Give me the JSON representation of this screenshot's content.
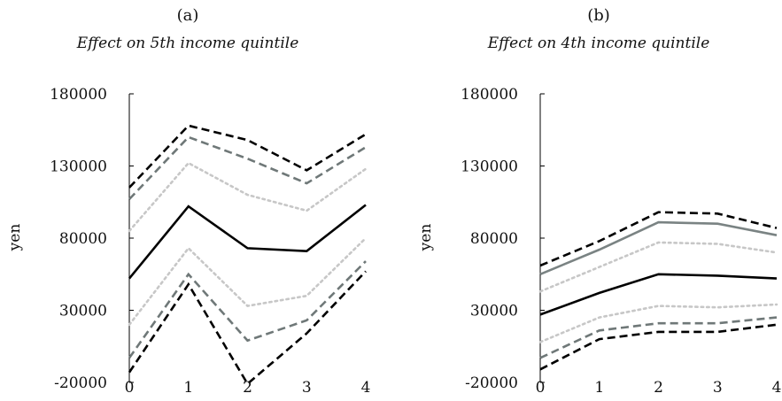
{
  "chart_data": [
    {
      "type": "line",
      "panel_label": "(a)",
      "title": "Effect on 5th income quintile",
      "xlabel": "",
      "ylabel": "yen",
      "x": [
        0,
        1,
        2,
        3,
        4
      ],
      "xticks": [
        "0",
        "1",
        "2",
        "3",
        "4"
      ],
      "yticks": [
        "180000",
        "130000",
        "80000",
        "30000",
        "-20000"
      ],
      "ylim": [
        -20000,
        180000
      ],
      "grid": false,
      "series": [
        {
          "style": "solid",
          "color": "#000000",
          "values": [
            52000,
            102000,
            73000,
            71000,
            103000
          ]
        },
        {
          "style": "dotted",
          "color": "#c7c7c7",
          "values": [
            85000,
            132000,
            110000,
            99000,
            128000
          ]
        },
        {
          "style": "dotted",
          "color": "#c7c7c7",
          "values": [
            20000,
            73000,
            33000,
            40000,
            80000
          ]
        },
        {
          "style": "dashed",
          "color": "#6f7878",
          "values": [
            107000,
            150000,
            135000,
            118000,
            143000
          ]
        },
        {
          "style": "dashed",
          "color": "#6f7878",
          "values": [
            -3000,
            55000,
            9000,
            23000,
            64000
          ]
        },
        {
          "style": "dashed",
          "color": "#000000",
          "values": [
            115000,
            158000,
            148000,
            127000,
            152000
          ]
        },
        {
          "style": "dashed",
          "color": "#000000",
          "values": [
            -13000,
            48000,
            -21000,
            14000,
            57000
          ]
        }
      ]
    },
    {
      "type": "line",
      "panel_label": "(b)",
      "title": "Effect on 4th income quintile",
      "xlabel": "",
      "ylabel": "yen",
      "x": [
        0,
        1,
        2,
        3,
        4
      ],
      "xticks": [
        "0",
        "1",
        "2",
        "3",
        "4"
      ],
      "yticks": [
        "180000",
        "130000",
        "80000",
        "30000",
        "-20000"
      ],
      "ylim": [
        -20000,
        180000
      ],
      "grid": false,
      "series": [
        {
          "style": "solid",
          "color": "#000000",
          "values": [
            27000,
            42000,
            55000,
            54000,
            52000
          ]
        },
        {
          "style": "dotted",
          "color": "#c7c7c7",
          "values": [
            43000,
            60000,
            77000,
            76000,
            70000
          ]
        },
        {
          "style": "dotted",
          "color": "#c7c7c7",
          "values": [
            8000,
            25000,
            33000,
            32000,
            34000
          ]
        },
        {
          "style": "solid",
          "color": "#7a8383",
          "values": [
            55000,
            72000,
            91000,
            90000,
            82000
          ]
        },
        {
          "style": "dashed",
          "color": "#6f7878",
          "values": [
            -3000,
            16000,
            21000,
            21000,
            25000
          ]
        },
        {
          "style": "dashed",
          "color": "#000000",
          "values": [
            61000,
            78000,
            98000,
            97000,
            87000
          ]
        },
        {
          "style": "dashed",
          "color": "#000000",
          "values": [
            -11000,
            10000,
            15000,
            15000,
            20000
          ]
        }
      ]
    }
  ]
}
